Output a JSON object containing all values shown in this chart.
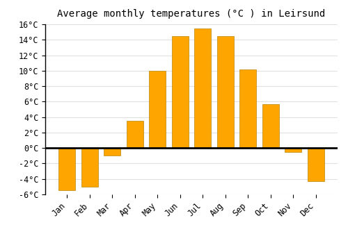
{
  "title": "Average monthly temperatures (°C ) in Leirsund",
  "months": [
    "Jan",
    "Feb",
    "Mar",
    "Apr",
    "May",
    "Jun",
    "Jul",
    "Aug",
    "Sep",
    "Oct",
    "Nov",
    "Dec"
  ],
  "values": [
    -5.5,
    -5.0,
    -1.0,
    3.5,
    10.0,
    14.5,
    15.5,
    14.5,
    10.2,
    5.7,
    -0.5,
    -4.3
  ],
  "bar_color": "#FFA500",
  "bar_edge_color": "#b8860b",
  "ylim": [
    -6,
    16
  ],
  "yticks": [
    -6,
    -4,
    -2,
    0,
    2,
    4,
    6,
    8,
    10,
    12,
    14,
    16
  ],
  "background_color": "#ffffff",
  "grid_color": "#e0e0e0",
  "title_fontsize": 10,
  "tick_fontsize": 8.5
}
